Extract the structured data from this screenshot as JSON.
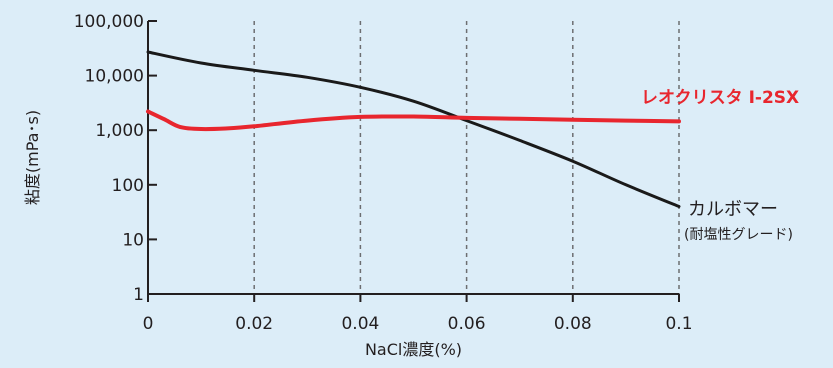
{
  "chart_data": {
    "type": "line",
    "title": "",
    "xlabel": "NaCl濃度(%)",
    "ylabel": "粘度(mPa･s)",
    "xlim": [
      0,
      0.1
    ],
    "ylim": [
      1,
      100000
    ],
    "yscale": "log",
    "x_ticks": [
      0,
      0.02,
      0.04,
      0.06,
      0.08,
      0.1
    ],
    "x_tick_labels": [
      "0",
      "0.02",
      "0.04",
      "0.06",
      "0.08",
      "0.1"
    ],
    "y_ticks": [
      1,
      10,
      100,
      1000,
      10000,
      100000
    ],
    "y_tick_labels": [
      "1",
      "10",
      "100",
      "1,000",
      "10,000",
      "100,000"
    ],
    "grid": "vertical-dashed",
    "series": [
      {
        "name": "レオクリスタ I-2SX",
        "color": "#e8262e",
        "x": [
          0,
          0.003,
          0.006,
          0.01,
          0.015,
          0.02,
          0.03,
          0.04,
          0.05,
          0.06,
          0.07,
          0.08,
          0.09,
          0.1
        ],
        "y": [
          2200,
          1600,
          1150,
          1050,
          1080,
          1180,
          1500,
          1750,
          1780,
          1680,
          1620,
          1560,
          1500,
          1450
        ]
      },
      {
        "name": "カルボマー",
        "sublabel": "(耐塩性グレード)",
        "color": "#1a1a1a",
        "x": [
          0,
          0.01,
          0.02,
          0.03,
          0.04,
          0.05,
          0.06,
          0.07,
          0.08,
          0.09,
          0.1
        ],
        "y": [
          27000,
          17000,
          12500,
          9300,
          6100,
          3400,
          1500,
          650,
          270,
          100,
          40
        ]
      }
    ]
  }
}
